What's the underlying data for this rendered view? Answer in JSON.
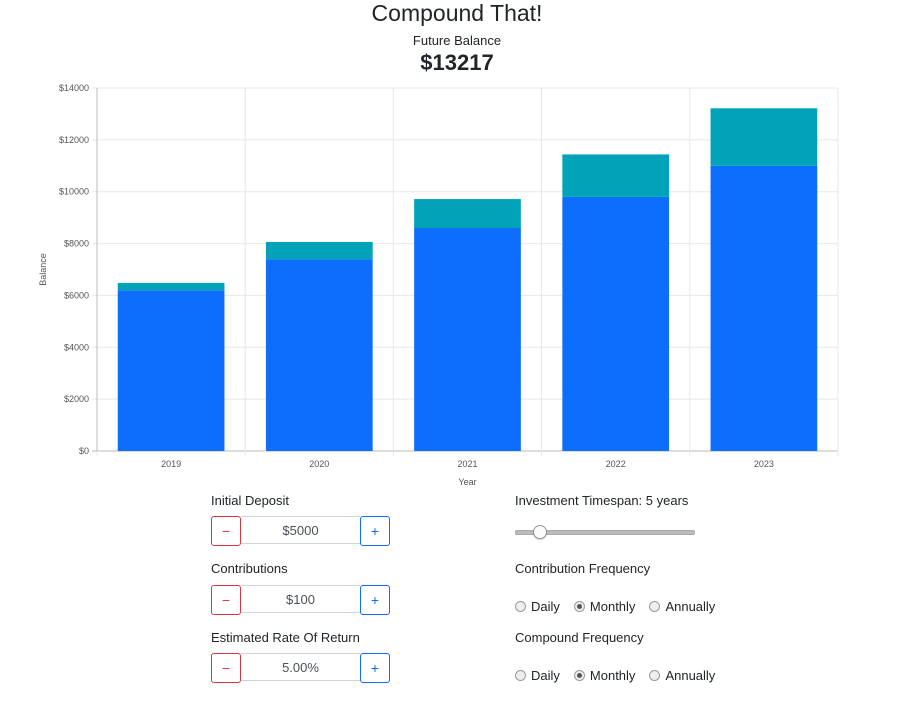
{
  "header": {
    "title": "Compound That!",
    "balance_label": "Future Balance",
    "balance_value": "$13217"
  },
  "chart_data": {
    "type": "bar",
    "stacked": true,
    "categories": [
      "2019",
      "2020",
      "2021",
      "2022",
      "2023"
    ],
    "series": [
      {
        "values": [
          6200,
          7400,
          8600,
          9800,
          11000
        ],
        "color": "#0d6efd"
      },
      {
        "values": [
          283,
          662,
          1116,
          1638,
          2217
        ],
        "color": "#00a3b8"
      }
    ],
    "xlabel": "Year",
    "ylabel": "Balance",
    "ylim": [
      0,
      14000
    ],
    "yticks": [
      "$0",
      "$2000",
      "$4000",
      "$6000",
      "$8000",
      "$10000",
      "$12000",
      "$14000"
    ],
    "grid": true
  },
  "inputs": {
    "initial_deposit": {
      "label": "Initial Deposit",
      "value": "$5000"
    },
    "contributions": {
      "label": "Contributions",
      "value": "$100"
    },
    "rate": {
      "label": "Estimated Rate Of Return",
      "value": "5.00%"
    },
    "minus": "−",
    "plus": "+"
  },
  "timespan": {
    "label": "Investment Timespan: 5 years",
    "value_years": 5
  },
  "contribution_frequency": {
    "label": "Contribution Frequency",
    "options": [
      "Daily",
      "Monthly",
      "Annually"
    ],
    "selected": "Monthly"
  },
  "compound_frequency": {
    "label": "Compound Frequency",
    "options": [
      "Daily",
      "Monthly",
      "Annually"
    ],
    "selected": "Monthly"
  }
}
